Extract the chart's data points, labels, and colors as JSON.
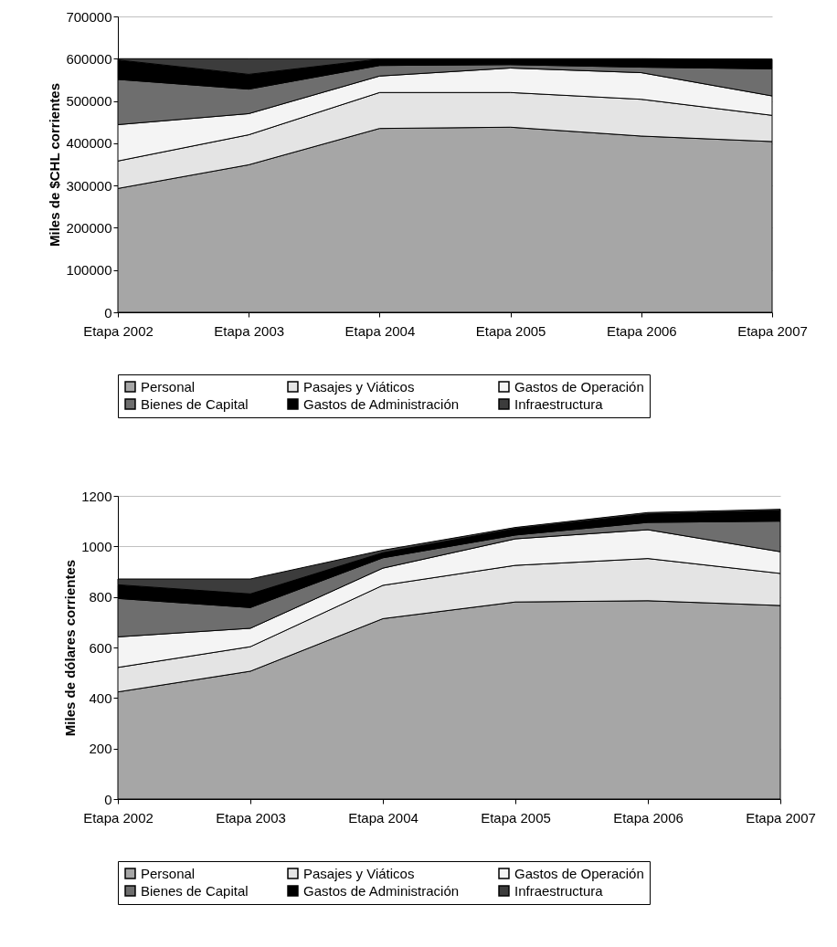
{
  "chart_data": [
    {
      "type": "area",
      "stacked": true,
      "ylabel": "Miles de $CHL corrientes",
      "categories": [
        "Etapa 2002",
        "Etapa 2003",
        "Etapa 2004",
        "Etapa 2005",
        "Etapa 2006",
        "Etapa 2007"
      ],
      "ylim": [
        0,
        700000
      ],
      "yticks": [
        0,
        100000,
        200000,
        300000,
        400000,
        500000,
        600000,
        700000
      ],
      "grid": "y",
      "legend": "bottom",
      "series": [
        {
          "name": "Personal",
          "color": "#a6a6a6",
          "values": [
            293000,
            349000,
            435000,
            438000,
            417000,
            404000
          ]
        },
        {
          "name": "Pasajes y Viáticos",
          "color": "#e4e4e4",
          "values": [
            65000,
            71000,
            85000,
            82000,
            87000,
            62000
          ]
        },
        {
          "name": "Gastos de Operación",
          "color": "#f4f4f4",
          "values": [
            86000,
            50000,
            39000,
            58000,
            63000,
            46000
          ]
        },
        {
          "name": "Bienes de Capital",
          "color": "#6e6e6e",
          "values": [
            107000,
            58000,
            25000,
            8000,
            13000,
            64000
          ]
        },
        {
          "name": "Gastos de Administración",
          "color": "#000000",
          "values": [
            46000,
            35000,
            15000,
            13000,
            19000,
            22000
          ]
        },
        {
          "name": "Infraestructura",
          "color": "#3c3c3c",
          "values": [
            3000,
            37000,
            1000,
            1000,
            1000,
            1000
          ]
        }
      ]
    },
    {
      "type": "area",
      "stacked": true,
      "ylabel": "Miles de dólares corrientes",
      "categories": [
        "Etapa 2002",
        "Etapa 2003",
        "Etapa 2004",
        "Etapa 2005",
        "Etapa 2006",
        "Etapa 2007"
      ],
      "ylim": [
        0,
        1200
      ],
      "yticks": [
        0,
        200,
        400,
        600,
        800,
        1000,
        1200
      ],
      "grid": "y",
      "legend": "bottom",
      "series": [
        {
          "name": "Personal",
          "color": "#a6a6a6",
          "values": [
            424,
            506,
            714,
            780,
            785,
            766
          ]
        },
        {
          "name": "Pasajes y Viáticos",
          "color": "#e4e4e4",
          "values": [
            97,
            97,
            132,
            145,
            167,
            127
          ]
        },
        {
          "name": "Gastos de Operación",
          "color": "#f4f4f4",
          "values": [
            121,
            73,
            68,
            105,
            114,
            86
          ]
        },
        {
          "name": "Bienes de Capital",
          "color": "#6e6e6e",
          "values": [
            152,
            82,
            41,
            15,
            29,
            121
          ]
        },
        {
          "name": "Gastos de Administración",
          "color": "#000000",
          "values": [
            54,
            54,
            20,
            25,
            33,
            42
          ]
        },
        {
          "name": "Infraestructura",
          "color": "#3c3c3c",
          "values": [
            23,
            59,
            10,
            5,
            6,
            5
          ]
        }
      ]
    }
  ]
}
